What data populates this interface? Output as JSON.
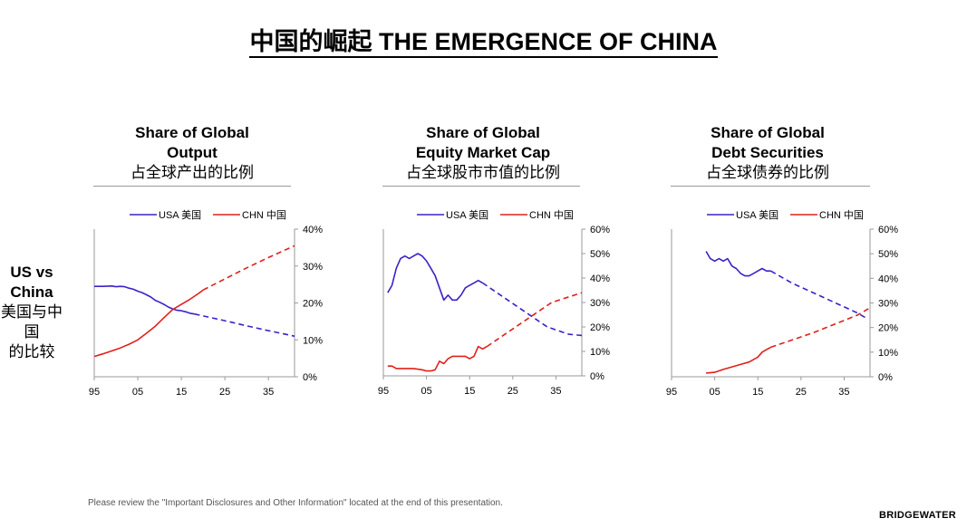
{
  "title": "中国的崛起 THE EMERGENCE OF CHINA",
  "side_label": {
    "line1": "US vs",
    "line2": "China",
    "line3": "美国与中国",
    "line4": "的比较"
  },
  "footer": "Please review the \"Important Disclosures and Other Information\" located at the end of this presentation.",
  "logo": "BRIDGEWATER",
  "colors": {
    "usa": "#3a22c8",
    "chn": "#e0201b",
    "axis": "#9a9a9a"
  },
  "chart_data": [
    {
      "type": "line",
      "title": "Share of Global Output",
      "title_line1": "Share of Global",
      "title_line2": "Output",
      "subtitle": "占全球产出的比例",
      "xlabel": "",
      "ylabel": "",
      "xlim": [
        95,
        41
      ],
      "ylim": [
        0,
        40
      ],
      "xticks": [
        "95",
        "05",
        "15",
        "25",
        "35"
      ],
      "yticks": [
        "0%",
        "10%",
        "20%",
        "30%",
        "40%"
      ],
      "legend": [
        {
          "name": "USA",
          "label": "USA 美国"
        },
        {
          "name": "CHN",
          "label": "CHN 中国"
        }
      ],
      "series": [
        {
          "name": "USA",
          "actual": [
            [
              95,
              24.5
            ],
            [
              97,
              24.5
            ],
            [
              99,
              24.6
            ],
            [
              100,
              24.4
            ],
            [
              101,
              24.5
            ],
            [
              102,
              24.4
            ],
            [
              103,
              24.0
            ],
            [
              104,
              23.7
            ],
            [
              105,
              23.2
            ],
            [
              106,
              22.8
            ],
            [
              107,
              22.2
            ],
            [
              108,
              21.6
            ],
            [
              109,
              20.7
            ],
            [
              110,
              20.2
            ],
            [
              111,
              19.6
            ],
            [
              112,
              18.9
            ],
            [
              113,
              18.4
            ],
            [
              114,
              18.0
            ],
            [
              115,
              17.9
            ],
            [
              116,
              17.6
            ],
            [
              117,
              17.2
            ],
            [
              118,
              17.0
            ]
          ],
          "projected": [
            [
              118,
              17.0
            ],
            [
              125,
              15.2
            ],
            [
              130,
              13.8
            ],
            [
              135,
              12.5
            ],
            [
              141,
              11.0
            ]
          ]
        },
        {
          "name": "CHN",
          "actual": [
            [
              95,
              5.5
            ],
            [
              97,
              6.2
            ],
            [
              99,
              7.0
            ],
            [
              101,
              7.8
            ],
            [
              103,
              8.8
            ],
            [
              105,
              10.0
            ],
            [
              107,
              11.8
            ],
            [
              109,
              13.7
            ],
            [
              111,
              16.0
            ],
            [
              113,
              18.2
            ],
            [
              115,
              19.6
            ],
            [
              117,
              21.0
            ],
            [
              119,
              22.6
            ],
            [
              120,
              23.5
            ]
          ],
          "projected": [
            [
              120,
              23.5
            ],
            [
              125,
              26.5
            ],
            [
              130,
              29.5
            ],
            [
              135,
              32.3
            ],
            [
              141,
              35.5
            ]
          ]
        }
      ]
    },
    {
      "type": "line",
      "title": "Share of Global Equity Market Cap",
      "title_line1": "Share of Global",
      "title_line2": "Equity Market Cap",
      "subtitle": "占全球股市市值的比例",
      "xlabel": "",
      "ylabel": "",
      "xlim": [
        95,
        41
      ],
      "ylim": [
        0,
        60
      ],
      "xticks": [
        "95",
        "05",
        "15",
        "25",
        "35"
      ],
      "yticks": [
        "0%",
        "10%",
        "20%",
        "30%",
        "40%",
        "50%",
        "60%"
      ],
      "legend": [
        {
          "name": "USA",
          "label": "USA 美国"
        },
        {
          "name": "CHN",
          "label": "CHN 中国"
        }
      ],
      "series": [
        {
          "name": "USA",
          "actual": [
            [
              96,
              34
            ],
            [
              97,
              37
            ],
            [
              98,
              44
            ],
            [
              99,
              48
            ],
            [
              100,
              49
            ],
            [
              101,
              48
            ],
            [
              102,
              49
            ],
            [
              103,
              50
            ],
            [
              104,
              49
            ],
            [
              105,
              47
            ],
            [
              106,
              44
            ],
            [
              107,
              41
            ],
            [
              108,
              36
            ],
            [
              109,
              31
            ],
            [
              110,
              33
            ],
            [
              111,
              31
            ],
            [
              112,
              31
            ],
            [
              113,
              33
            ],
            [
              114,
              36
            ],
            [
              115,
              37
            ],
            [
              116,
              38
            ],
            [
              117,
              39
            ],
            [
              118,
              38
            ]
          ],
          "projected": [
            [
              118,
              38
            ],
            [
              123,
              32
            ],
            [
              128,
              26
            ],
            [
              133,
              20
            ],
            [
              138,
              17
            ],
            [
              141,
              16.5
            ]
          ]
        },
        {
          "name": "CHN",
          "actual": [
            [
              96,
              4
            ],
            [
              97,
              4
            ],
            [
              98,
              3
            ],
            [
              100,
              3
            ],
            [
              102,
              3
            ],
            [
              104,
              2.5
            ],
            [
              105,
              2
            ],
            [
              106,
              2
            ],
            [
              107,
              2.5
            ],
            [
              108,
              6
            ],
            [
              109,
              5
            ],
            [
              110,
              7
            ],
            [
              111,
              8
            ],
            [
              112,
              8
            ],
            [
              113,
              8
            ],
            [
              114,
              8
            ],
            [
              115,
              7
            ],
            [
              116,
              8
            ],
            [
              117,
              12
            ],
            [
              118,
              11
            ],
            [
              119,
              12
            ]
          ],
          "projected": [
            [
              119,
              12
            ],
            [
              124,
              18
            ],
            [
              129,
              24
            ],
            [
              134,
              30
            ],
            [
              141,
              34
            ]
          ]
        }
      ]
    },
    {
      "type": "line",
      "title": "Share of Global Debt Securities",
      "title_line1": "Share of Global",
      "title_line2": "Debt Securities",
      "subtitle": "占全球债券的比例",
      "xlabel": "",
      "ylabel": "",
      "xlim": [
        95,
        41
      ],
      "ylim": [
        0,
        60
      ],
      "xticks": [
        "95",
        "05",
        "15",
        "25",
        "35"
      ],
      "yticks": [
        "0%",
        "10%",
        "20%",
        "30%",
        "40%",
        "50%",
        "60%"
      ],
      "legend": [
        {
          "name": "USA",
          "label": "USA 美国"
        },
        {
          "name": "CHN",
          "label": "CHN 中国"
        }
      ],
      "series": [
        {
          "name": "USA",
          "actual": [
            [
              103,
              51
            ],
            [
              104,
              48
            ],
            [
              105,
              47
            ],
            [
              106,
              48
            ],
            [
              107,
              47
            ],
            [
              108,
              48
            ],
            [
              109,
              45
            ],
            [
              110,
              44
            ],
            [
              111,
              42
            ],
            [
              112,
              41
            ],
            [
              113,
              41
            ],
            [
              114,
              42
            ],
            [
              115,
              43
            ],
            [
              116,
              44
            ],
            [
              117,
              43
            ],
            [
              118,
              43
            ]
          ],
          "projected": [
            [
              118,
              43
            ],
            [
              123,
              38
            ],
            [
              128,
              34
            ],
            [
              133,
              30
            ],
            [
              138,
              26
            ],
            [
              140,
              24
            ]
          ]
        },
        {
          "name": "CHN",
          "actual": [
            [
              103,
              1.5
            ],
            [
              105,
              1.8
            ],
            [
              107,
              3
            ],
            [
              109,
              4
            ],
            [
              111,
              5
            ],
            [
              113,
              6
            ],
            [
              115,
              8
            ],
            [
              116,
              10
            ],
            [
              117,
              11
            ],
            [
              118,
              12
            ]
          ],
          "projected": [
            [
              118,
              12
            ],
            [
              123,
              15
            ],
            [
              128,
              18
            ],
            [
              133,
              21.5
            ],
            [
              138,
              25
            ],
            [
              141,
              28
            ]
          ]
        }
      ]
    }
  ]
}
